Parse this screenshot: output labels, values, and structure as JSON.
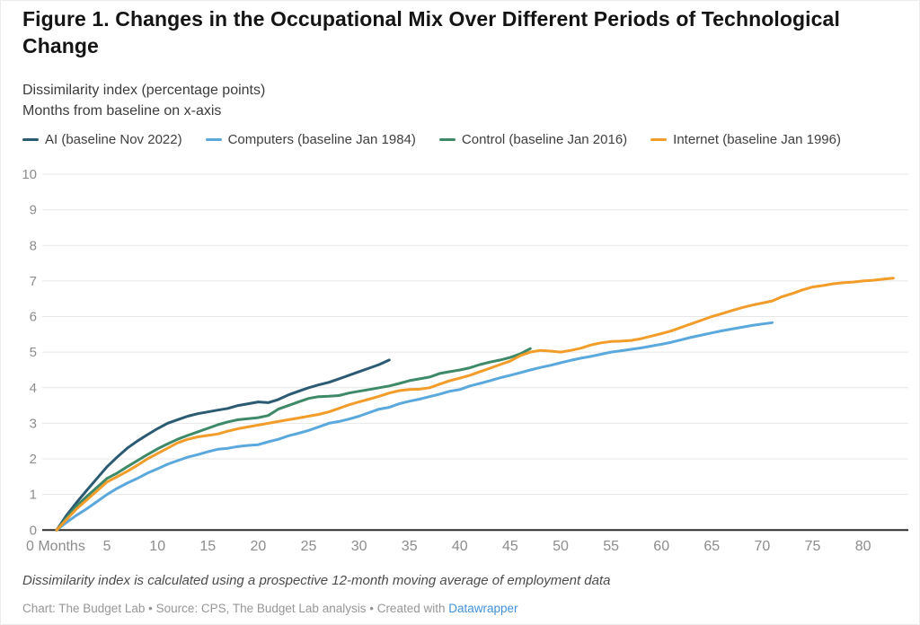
{
  "header": {
    "title": "Figure 1. Changes in the Occupational Mix Over Different Periods of Technological Change",
    "subtitle_line1": "Dissimilarity index (percentage points)",
    "subtitle_line2": "Months from baseline on x-axis"
  },
  "chart_data": {
    "type": "line",
    "title": "Changes in the Occupational Mix Over Different Periods of Technological Change",
    "xlabel": "Months from baseline",
    "ylabel": "Dissimilarity index (percentage points)",
    "xlim": [
      0,
      84
    ],
    "ylim": [
      0,
      10
    ],
    "grid": true,
    "legend_position": "top",
    "y_ticks": [
      0,
      1,
      2,
      3,
      4,
      5,
      6,
      7,
      8,
      9,
      10
    ],
    "x_ticks": [
      {
        "m": 0,
        "label": "0 Months"
      },
      {
        "m": 5,
        "label": "5"
      },
      {
        "m": 10,
        "label": "10"
      },
      {
        "m": 15,
        "label": "15"
      },
      {
        "m": 20,
        "label": "20"
      },
      {
        "m": 25,
        "label": "25"
      },
      {
        "m": 30,
        "label": "30"
      },
      {
        "m": 35,
        "label": "35"
      },
      {
        "m": 40,
        "label": "40"
      },
      {
        "m": 45,
        "label": "45"
      },
      {
        "m": 50,
        "label": "50"
      },
      {
        "m": 55,
        "label": "55"
      },
      {
        "m": 60,
        "label": "60"
      },
      {
        "m": 65,
        "label": "65"
      },
      {
        "m": 70,
        "label": "70"
      },
      {
        "m": 75,
        "label": "75"
      },
      {
        "m": 80,
        "label": "80"
      }
    ],
    "x_unit": "months from baseline (one value per month, starting at 0)",
    "series": [
      {
        "name": "AI (baseline Nov 2022)",
        "color": "#2b5a72",
        "values": [
          0,
          0.42,
          0.78,
          1.12,
          1.45,
          1.78,
          2.05,
          2.3,
          2.5,
          2.68,
          2.85,
          3.0,
          3.1,
          3.2,
          3.27,
          3.32,
          3.37,
          3.42,
          3.5,
          3.55,
          3.6,
          3.58,
          3.67,
          3.8,
          3.9,
          4.0,
          4.08,
          4.15,
          4.25,
          4.35,
          4.45,
          4.55,
          4.65,
          4.78
        ]
      },
      {
        "name": "Computers (baseline Jan 1984)",
        "color": "#5ba8dc",
        "values": [
          0,
          0.22,
          0.42,
          0.6,
          0.8,
          1.0,
          1.17,
          1.32,
          1.45,
          1.6,
          1.72,
          1.85,
          1.95,
          2.05,
          2.12,
          2.2,
          2.27,
          2.3,
          2.35,
          2.38,
          2.4,
          2.48,
          2.55,
          2.65,
          2.72,
          2.8,
          2.9,
          3.0,
          3.05,
          3.12,
          3.2,
          3.3,
          3.4,
          3.45,
          3.55,
          3.62,
          3.68,
          3.75,
          3.82,
          3.9,
          3.95,
          4.05,
          4.12,
          4.2,
          4.28,
          4.35,
          4.42,
          4.5,
          4.57,
          4.63,
          4.7,
          4.77,
          4.83,
          4.88,
          4.94,
          5.0,
          5.04,
          5.08,
          5.12,
          5.17,
          5.22,
          5.28,
          5.35,
          5.42,
          5.48,
          5.54,
          5.6,
          5.65,
          5.7,
          5.75,
          5.79,
          5.83
        ]
      },
      {
        "name": "Control (baseline Jan 2016)",
        "color": "#3e8a68",
        "values": [
          0,
          0.35,
          0.68,
          0.95,
          1.2,
          1.45,
          1.6,
          1.78,
          1.95,
          2.12,
          2.28,
          2.42,
          2.55,
          2.66,
          2.76,
          2.86,
          2.96,
          3.04,
          3.1,
          3.13,
          3.16,
          3.22,
          3.4,
          3.5,
          3.6,
          3.7,
          3.75,
          3.76,
          3.78,
          3.85,
          3.9,
          3.95,
          4.0,
          4.05,
          4.12,
          4.2,
          4.25,
          4.3,
          4.4,
          4.45,
          4.5,
          4.56,
          4.65,
          4.72,
          4.78,
          4.85,
          4.95,
          5.1
        ]
      },
      {
        "name": "Internet (baseline Jan 1996)",
        "color": "#f29c2a",
        "values": [
          0,
          0.3,
          0.6,
          0.85,
          1.1,
          1.35,
          1.5,
          1.65,
          1.82,
          2.0,
          2.15,
          2.3,
          2.45,
          2.55,
          2.62,
          2.66,
          2.7,
          2.78,
          2.85,
          2.9,
          2.95,
          3.0,
          3.05,
          3.1,
          3.15,
          3.2,
          3.25,
          3.32,
          3.42,
          3.52,
          3.6,
          3.68,
          3.76,
          3.85,
          3.92,
          3.95,
          3.96,
          4.0,
          4.1,
          4.2,
          4.27,
          4.35,
          4.45,
          4.55,
          4.65,
          4.75,
          4.9,
          5.0,
          5.05,
          5.03,
          5.0,
          5.05,
          5.11,
          5.2,
          5.26,
          5.3,
          5.31,
          5.33,
          5.38,
          5.45,
          5.52,
          5.6,
          5.7,
          5.8,
          5.9,
          6.0,
          6.08,
          6.17,
          6.25,
          6.32,
          6.38,
          6.44,
          6.56,
          6.65,
          6.75,
          6.83,
          6.87,
          6.92,
          6.95,
          6.97,
          7.0,
          7.02,
          7.05,
          7.08
        ]
      }
    ],
    "colors": {
      "gridline": "#e7e7e7",
      "axis_line": "#2b2b2b",
      "tick_label": "#8d8d8d"
    }
  },
  "footer": {
    "note": "Dissimilarity index is calculated using a prospective 12-month moving average of employment data",
    "credit_prefix": "Chart: The Budget Lab • Source: CPS, The Budget Lab analysis • Created with ",
    "credit_link": "Datawrapper"
  }
}
